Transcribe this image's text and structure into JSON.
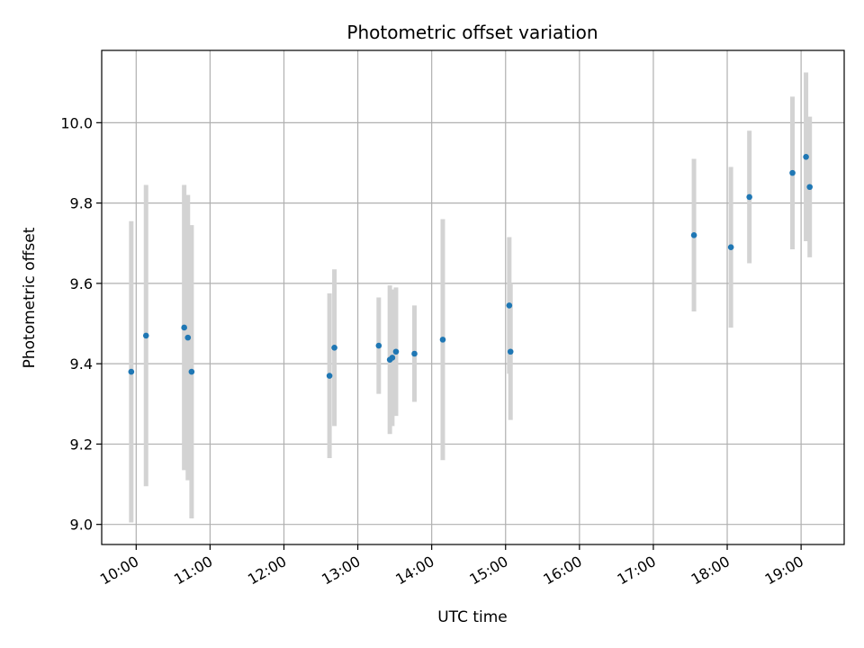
{
  "chart_data": {
    "type": "scatter",
    "title": "Photometric offset variation",
    "xlabel": "UTC time",
    "ylabel": "Photometric offset",
    "xlim": [
      "09:32",
      "19:35"
    ],
    "ylim": [
      8.95,
      10.18
    ],
    "x_ticks": [
      "10:00",
      "11:00",
      "12:00",
      "13:00",
      "14:00",
      "15:00",
      "16:00",
      "17:00",
      "18:00",
      "19:00"
    ],
    "y_ticks": [
      "9.0",
      "9.2",
      "9.4",
      "9.6",
      "9.8",
      "10.0"
    ],
    "grid": true,
    "colors": {
      "points": "#1f77b4",
      "error_bars": "#d3d3d3",
      "grid": "#b0b0b0"
    },
    "series": [
      {
        "points": [
          {
            "x": "09:56",
            "y": 9.38,
            "err": 0.375
          },
          {
            "x": "10:08",
            "y": 9.47,
            "err": 0.375
          },
          {
            "x": "10:39",
            "y": 9.49,
            "err": 0.355
          },
          {
            "x": "10:42",
            "y": 9.465,
            "err": 0.355
          },
          {
            "x": "10:45",
            "y": 9.38,
            "err": 0.365
          },
          {
            "x": "12:37",
            "y": 9.37,
            "err": 0.205
          },
          {
            "x": "12:41",
            "y": 9.44,
            "err": 0.195
          },
          {
            "x": "13:17",
            "y": 9.445,
            "err": 0.12
          },
          {
            "x": "13:26",
            "y": 9.41,
            "err": 0.185
          },
          {
            "x": "13:28",
            "y": 9.415,
            "err": 0.17
          },
          {
            "x": "13:31",
            "y": 9.43,
            "err": 0.16
          },
          {
            "x": "13:46",
            "y": 9.425,
            "err": 0.12
          },
          {
            "x": "14:09",
            "y": 9.46,
            "err": 0.3
          },
          {
            "x": "15:03",
            "y": 9.545,
            "err": 0.17
          },
          {
            "x": "15:04",
            "y": 9.43,
            "err": 0.17
          },
          {
            "x": "17:33",
            "y": 9.72,
            "err": 0.19
          },
          {
            "x": "18:03",
            "y": 9.69,
            "err": 0.2
          },
          {
            "x": "18:18",
            "y": 9.815,
            "err": 0.165
          },
          {
            "x": "18:53",
            "y": 9.875,
            "err": 0.19
          },
          {
            "x": "19:04",
            "y": 9.915,
            "err": 0.21
          },
          {
            "x": "19:07",
            "y": 9.84,
            "err": 0.175
          }
        ]
      }
    ]
  }
}
